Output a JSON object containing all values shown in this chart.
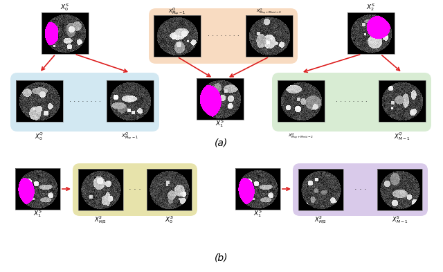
{
  "fig_width": 6.4,
  "fig_height": 3.93,
  "bg_color": "#ffffff",
  "colors": {
    "blue_box": "#aed6e8",
    "peach_box": "#f5c9a0",
    "green_box": "#b8ddb0",
    "yellow_box": "#ddd888",
    "purple_box": "#c0a8dc",
    "arrow_color": "#dd2020",
    "magenta": "#ff00ff"
  },
  "label_a": "(a)",
  "label_b": "(b)"
}
